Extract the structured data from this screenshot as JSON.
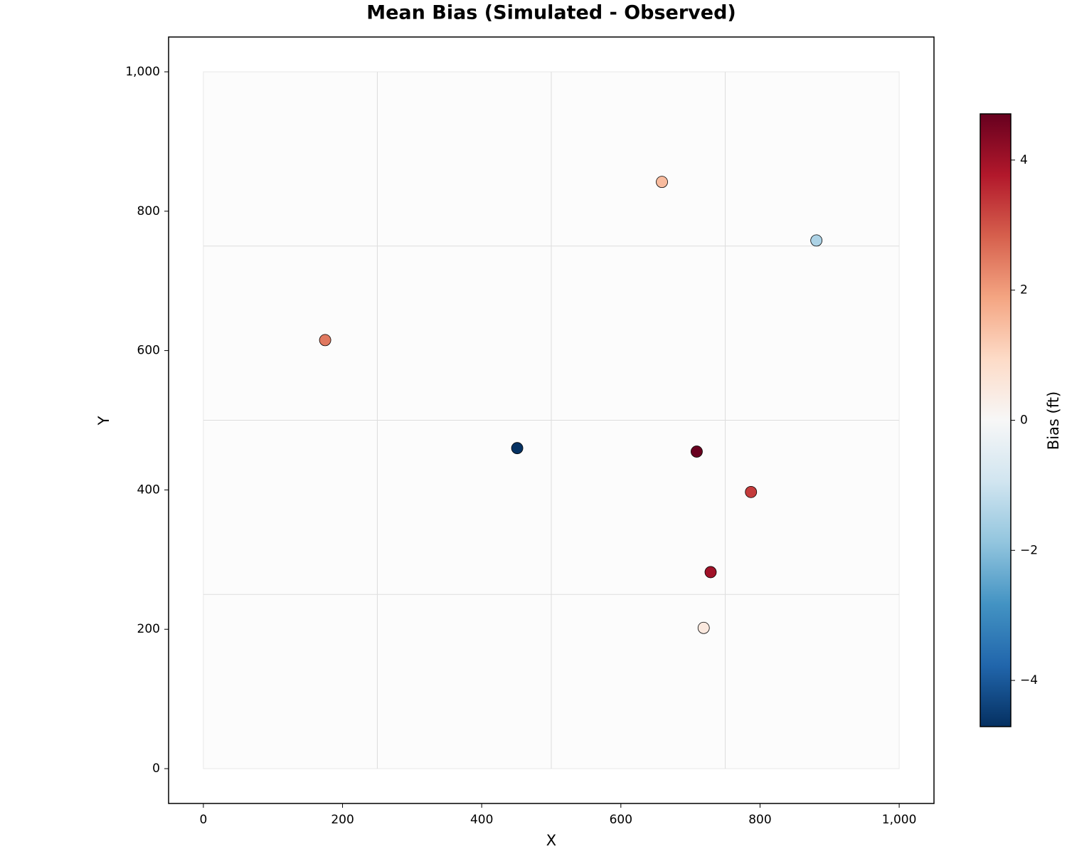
{
  "chart_data": {
    "type": "scatter",
    "title": "Mean Bias (Simulated - Observed)",
    "x_label": "X",
    "y_label": "Y",
    "x": [
      659,
      881,
      175,
      451,
      709,
      787,
      729,
      719
    ],
    "values": [
      842,
      758,
      615,
      460,
      455,
      397,
      282,
      202
    ],
    "bias": [
      1.5,
      -1.5,
      2.5,
      -4.7,
      4.7,
      3.3,
      4.0,
      0.5
    ],
    "xlim": [
      -50,
      1050
    ],
    "ylim": [
      -50,
      1050
    ],
    "xticks": [
      0,
      200,
      400,
      600,
      800,
      {
        "value": 1000,
        "label": "1,000"
      }
    ],
    "yticks": [
      0,
      200,
      400,
      600,
      800,
      {
        "value": 1000,
        "label": "1,000"
      }
    ],
    "domain": [
      0,
      1000
    ],
    "cell_lines": [
      250,
      500,
      750
    ],
    "colormap": "RdBu_r",
    "colorbar": {
      "label": "Bias (ft)",
      "clim": [
        -4.71,
        4.71
      ],
      "ticks": [
        {
          "value": -4,
          "label": "−4"
        },
        {
          "value": -2,
          "label": "−2"
        },
        0,
        2,
        4
      ]
    }
  }
}
